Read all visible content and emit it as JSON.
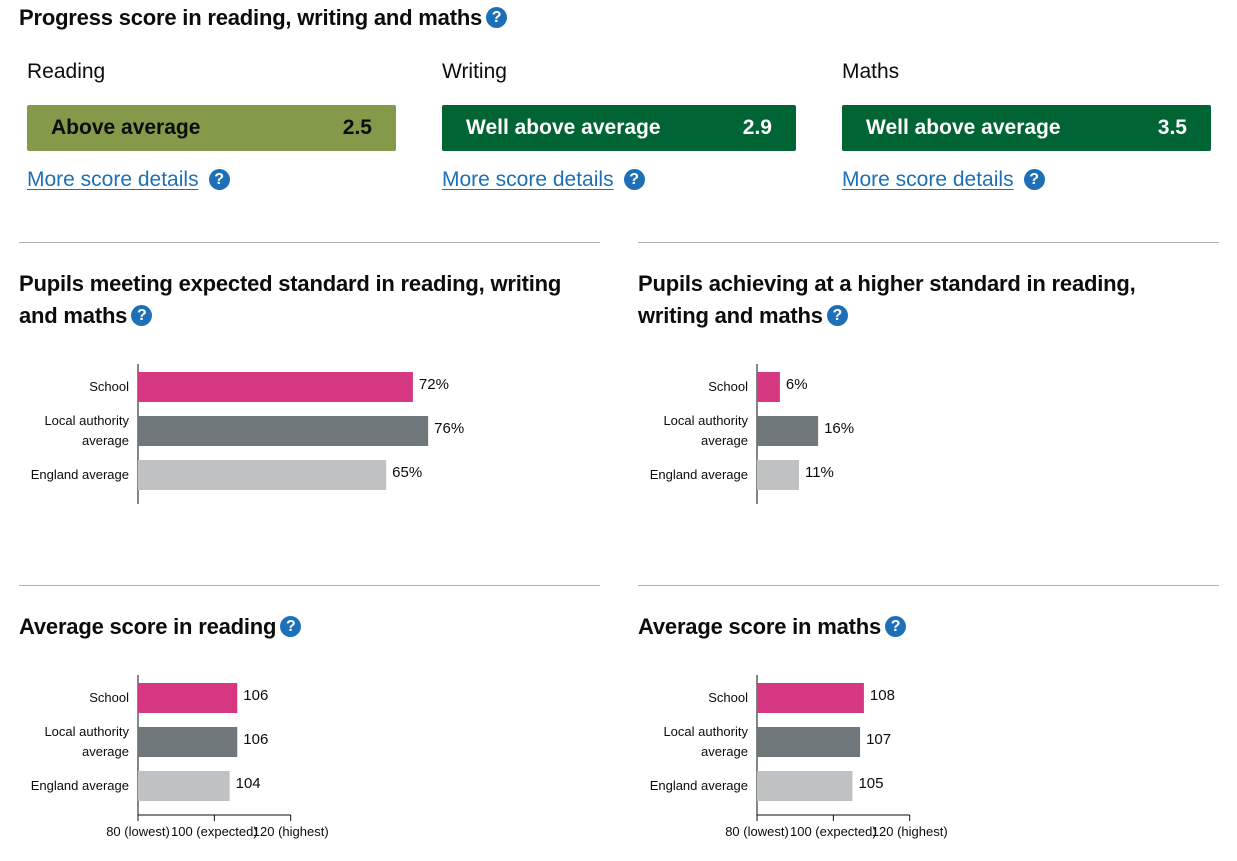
{
  "help_icon_glyph": "?",
  "progress": {
    "title": "Progress score in reading, writing and maths",
    "subjects": [
      {
        "label": "Reading",
        "band": "Above average",
        "score": "2.5",
        "bg": "#85994b",
        "fg": "#0b0c0c"
      },
      {
        "label": "Writing",
        "band": "Well above average",
        "score": "2.9",
        "bg": "#006435",
        "fg": "#ffffff"
      },
      {
        "label": "Maths",
        "band": "Well above average",
        "score": "3.5",
        "bg": "#006435",
        "fg": "#ffffff"
      }
    ],
    "link_label": "More score details"
  },
  "colors": {
    "school": "#d53880",
    "local": "#6f777b",
    "england": "#bfc1c3"
  },
  "chart_data": [
    {
      "type": "bar",
      "title": "Pupils meeting expected standard in reading, writing and maths",
      "categories": [
        "School",
        "Local authority average",
        "England average"
      ],
      "values": [
        72,
        76,
        65
      ],
      "value_labels": [
        "72%",
        "76%",
        "65%"
      ],
      "xlim": [
        0,
        100
      ]
    },
    {
      "type": "bar",
      "title": "Pupils achieving at a higher standard in reading, writing and maths",
      "categories": [
        "School",
        "Local authority average",
        "England average"
      ],
      "values": [
        6,
        16,
        11
      ],
      "value_labels": [
        "6%",
        "16%",
        "11%"
      ],
      "xlim": [
        0,
        100
      ]
    },
    {
      "type": "bar",
      "title": "Average score in reading",
      "categories": [
        "School",
        "Local authority average",
        "England average"
      ],
      "values": [
        106,
        106,
        104
      ],
      "value_labels": [
        "106",
        "106",
        "104"
      ],
      "xlim": [
        80,
        120
      ],
      "ticks": [
        {
          "value": 80,
          "label": "80 (lowest)"
        },
        {
          "value": 100,
          "label": "100 (expected)"
        },
        {
          "value": 120,
          "label": "120 (highest)"
        }
      ]
    },
    {
      "type": "bar",
      "title": "Average score in maths",
      "categories": [
        "School",
        "Local authority average",
        "England average"
      ],
      "values": [
        108,
        107,
        105
      ],
      "value_labels": [
        "108",
        "107",
        "105"
      ],
      "xlim": [
        80,
        120
      ],
      "ticks": [
        {
          "value": 80,
          "label": "80 (lowest)"
        },
        {
          "value": 100,
          "label": "100 (expected)"
        },
        {
          "value": 120,
          "label": "120 (highest)"
        }
      ]
    }
  ]
}
